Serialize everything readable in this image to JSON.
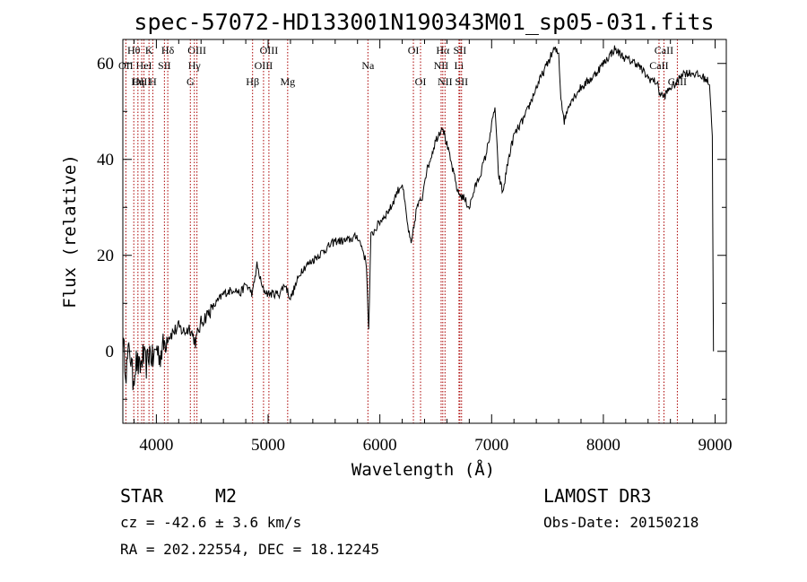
{
  "chart_data": {
    "type": "line",
    "title": "spec-57072-HD133001N190343M01_sp05-031.fits",
    "xlabel": "Wavelength (Å)",
    "ylabel": "Flux (relative)",
    "xlim": [
      3700,
      9100
    ],
    "ylim": [
      -15,
      65
    ],
    "xticks": [
      4000,
      5000,
      6000,
      7000,
      8000,
      9000
    ],
    "xtick_labels": [
      "4000",
      "5000",
      "6000",
      "7000",
      "8000",
      "9000"
    ],
    "yticks": [
      0,
      20,
      40,
      60
    ],
    "ytick_labels": [
      "0",
      "20",
      "40",
      "60"
    ],
    "series": [
      {
        "name": "flux",
        "points": [
          [
            3700,
            2
          ],
          [
            3730,
            -4
          ],
          [
            3760,
            1
          ],
          [
            3790,
            -6
          ],
          [
            3820,
            -2
          ],
          [
            3850,
            -4
          ],
          [
            3880,
            -1
          ],
          [
            3910,
            -3
          ],
          [
            3940,
            0
          ],
          [
            3970,
            -2
          ],
          [
            4000,
            1
          ],
          [
            4030,
            -1
          ],
          [
            4060,
            1
          ],
          [
            4100,
            3
          ],
          [
            4150,
            4
          ],
          [
            4200,
            5
          ],
          [
            4250,
            4
          ],
          [
            4300,
            5
          ],
          [
            4330,
            3
          ],
          [
            4350,
            2
          ],
          [
            4400,
            6
          ],
          [
            4500,
            9
          ],
          [
            4600,
            12
          ],
          [
            4700,
            13
          ],
          [
            4750,
            12
          ],
          [
            4800,
            14
          ],
          [
            4860,
            12
          ],
          [
            4900,
            18
          ],
          [
            4950,
            13
          ],
          [
            5000,
            12
          ],
          [
            5100,
            12
          ],
          [
            5150,
            14
          ],
          [
            5200,
            11
          ],
          [
            5250,
            14
          ],
          [
            5300,
            17
          ],
          [
            5400,
            19
          ],
          [
            5500,
            21
          ],
          [
            5600,
            23
          ],
          [
            5700,
            23
          ],
          [
            5800,
            24
          ],
          [
            5850,
            21
          ],
          [
            5880,
            18
          ],
          [
            5900,
            4
          ],
          [
            5920,
            24
          ],
          [
            6000,
            27
          ],
          [
            6100,
            30
          ],
          [
            6150,
            33
          ],
          [
            6200,
            35
          ],
          [
            6250,
            26
          ],
          [
            6280,
            22
          ],
          [
            6330,
            30
          ],
          [
            6380,
            32
          ],
          [
            6400,
            36
          ],
          [
            6450,
            40
          ],
          [
            6500,
            44
          ],
          [
            6560,
            47
          ],
          [
            6600,
            43
          ],
          [
            6650,
            38
          ],
          [
            6700,
            33
          ],
          [
            6750,
            32
          ],
          [
            6800,
            30
          ],
          [
            6850,
            34
          ],
          [
            6900,
            37
          ],
          [
            6950,
            41
          ],
          [
            7000,
            47
          ],
          [
            7030,
            51
          ],
          [
            7060,
            37
          ],
          [
            7100,
            33
          ],
          [
            7150,
            40
          ],
          [
            7200,
            45
          ],
          [
            7300,
            49
          ],
          [
            7400,
            55
          ],
          [
            7500,
            60
          ],
          [
            7560,
            63
          ],
          [
            7600,
            62
          ],
          [
            7620,
            53
          ],
          [
            7650,
            48
          ],
          [
            7700,
            52
          ],
          [
            7800,
            55
          ],
          [
            7900,
            57
          ],
          [
            8000,
            60
          ],
          [
            8100,
            63
          ],
          [
            8150,
            62
          ],
          [
            8200,
            61
          ],
          [
            8300,
            60
          ],
          [
            8400,
            57
          ],
          [
            8480,
            56
          ],
          [
            8500,
            54
          ],
          [
            8540,
            53
          ],
          [
            8600,
            55
          ],
          [
            8660,
            56
          ],
          [
            8700,
            58
          ],
          [
            8800,
            58
          ],
          [
            8900,
            57
          ],
          [
            8950,
            56
          ],
          [
            8975,
            45
          ],
          [
            8985,
            0
          ]
        ]
      }
    ],
    "line_markers": [
      {
        "label": "Hθ",
        "x": 3798,
        "row": 1
      },
      {
        "label": "OII",
        "x": 3727,
        "row": 2
      },
      {
        "label": "OIII",
        "x": 3869,
        "row": 3
      },
      {
        "label": "K",
        "x": 3934,
        "row": 1
      },
      {
        "label": "HeI",
        "x": 3889,
        "row": 2
      },
      {
        "label": "Hη",
        "x": 3835,
        "row": 3
      },
      {
        "label": "Hδ",
        "x": 4102,
        "row": 1
      },
      {
        "label": "SII",
        "x": 4072,
        "row": 2
      },
      {
        "label": "H",
        "x": 3968,
        "row": 3
      },
      {
        "label": "OIII",
        "x": 4363,
        "row": 1
      },
      {
        "label": "Hγ",
        "x": 4340,
        "row": 2
      },
      {
        "label": "G",
        "x": 4304,
        "row": 3
      },
      {
        "label": "OIII",
        "x": 5007,
        "row": 1
      },
      {
        "label": "OIII",
        "x": 4959,
        "row": 2
      },
      {
        "label": "Hβ",
        "x": 4861,
        "row": 3
      },
      {
        "label": "Mg",
        "x": 5175,
        "row": 3
      },
      {
        "label": "Na",
        "x": 5893,
        "row": 2
      },
      {
        "label": "OI",
        "x": 6300,
        "row": 1
      },
      {
        "label": "OI",
        "x": 6364,
        "row": 3
      },
      {
        "label": "Hα",
        "x": 6563,
        "row": 1
      },
      {
        "label": "SII",
        "x": 6716,
        "row": 1
      },
      {
        "label": "NII",
        "x": 6548,
        "row": 2
      },
      {
        "label": "Li",
        "x": 6708,
        "row": 2
      },
      {
        "label": "NII",
        "x": 6583,
        "row": 3
      },
      {
        "label": "SII",
        "x": 6731,
        "row": 3
      },
      {
        "label": "CaII",
        "x": 8542,
        "row": 1
      },
      {
        "label": "CaII",
        "x": 8498,
        "row": 2
      },
      {
        "label": "CaII",
        "x": 8662,
        "row": 3
      }
    ]
  },
  "info": {
    "class_label": "STAR",
    "subclass": "M2",
    "redshift": "cz = -42.6 ± 3.6 km/s",
    "coords": "RA = 202.22554, DEC =  18.12245",
    "survey": "LAMOST DR3",
    "obs_date": "Obs-Date: 20150218"
  },
  "colors": {
    "axis": "#000000",
    "spectrum": "#000000",
    "marker_line": "#aa0000"
  }
}
